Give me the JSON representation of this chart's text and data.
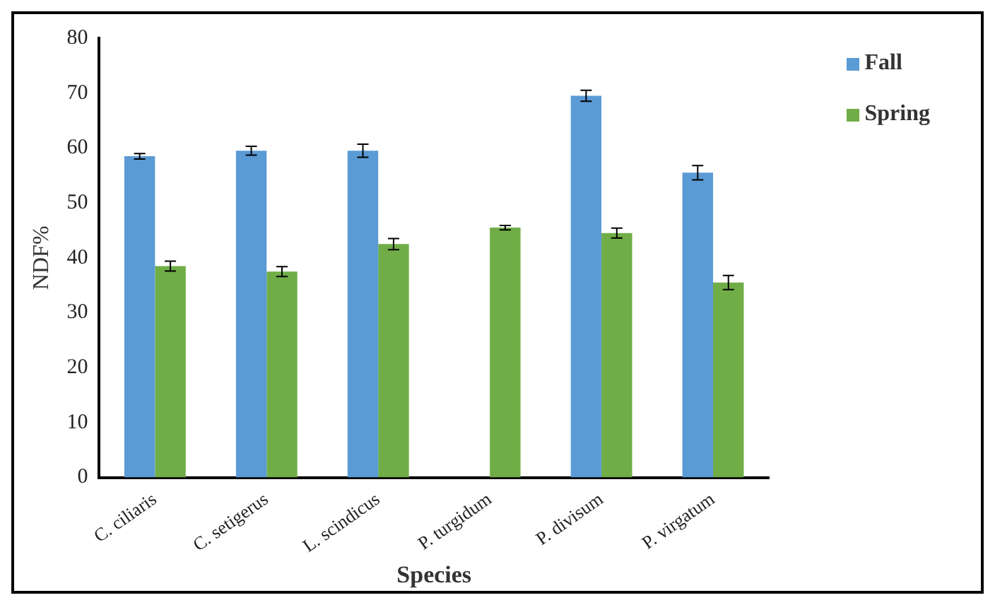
{
  "chart_data": {
    "type": "bar",
    "xlabel": "Species",
    "ylabel": "NDF%",
    "categories": [
      "C. ciliaris",
      "C. setigerus",
      "L. scindicus",
      "P. turgidum",
      "P. divisum",
      "P. virgatum"
    ],
    "series": [
      {
        "name": "Fall",
        "color": "#5b9bd5",
        "values": [
          58.5,
          59.5,
          59.5,
          null,
          69.5,
          55.5
        ],
        "errors": [
          0.5,
          0.8,
          1.2,
          null,
          1,
          1.3
        ]
      },
      {
        "name": "Spring",
        "color": "#70ad47",
        "values": [
          38.5,
          37.5,
          42.5,
          45.5,
          44.5,
          35.5
        ],
        "errors": [
          0.9,
          0.9,
          1,
          0.4,
          0.9,
          1.3
        ]
      }
    ],
    "ylim": [
      0,
      80
    ],
    "yticks": [
      0,
      10,
      20,
      30,
      40,
      50,
      60,
      70,
      80
    ],
    "grid": false,
    "legend": "top right"
  }
}
